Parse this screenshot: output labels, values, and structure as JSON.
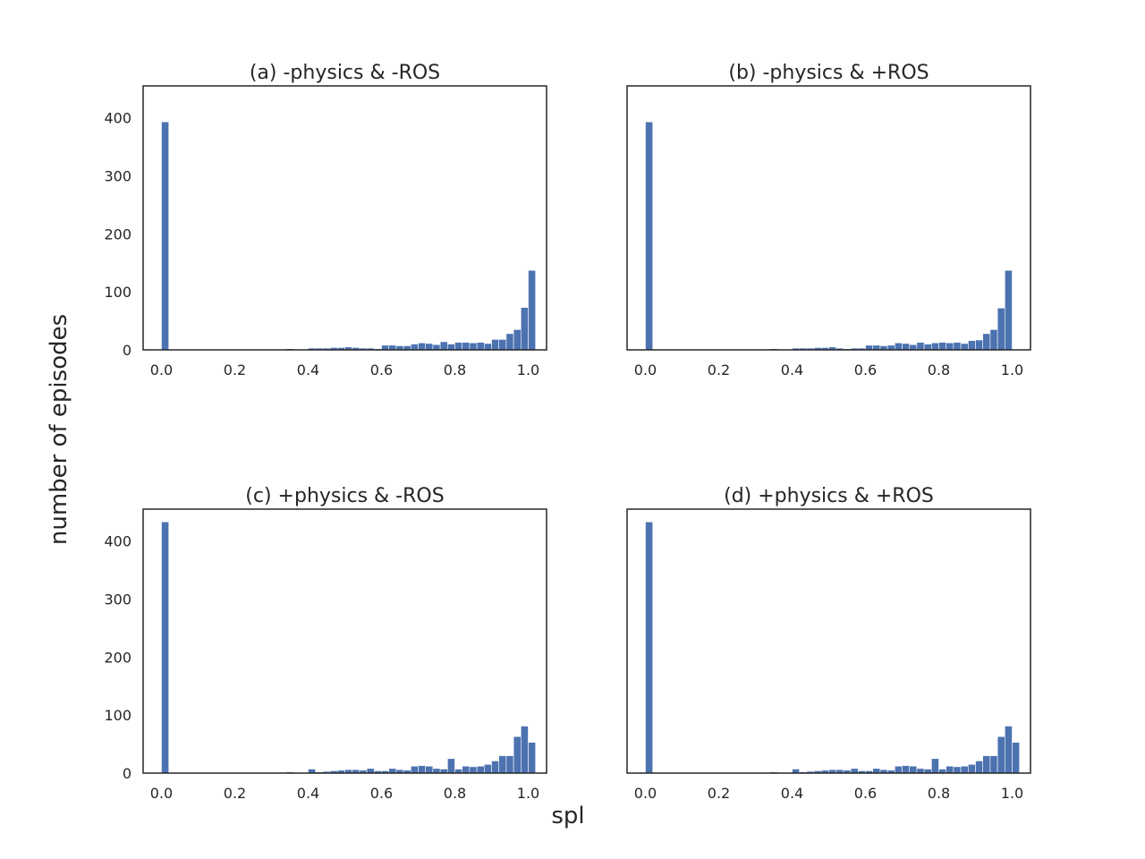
{
  "figure": {
    "ylabel": "number of episodes",
    "xlabel": "spl",
    "bar_color": "#4c72b0",
    "text_color": "#262626",
    "background": "#ffffff"
  },
  "chart_data": [
    {
      "type": "bar",
      "title": "(a) -physics & -ROS",
      "xlim": [
        -0.05,
        1.05
      ],
      "ylim": [
        0,
        455
      ],
      "xticks": [
        "0.0",
        "0.2",
        "0.4",
        "0.6",
        "0.8",
        "1.0"
      ],
      "yticks": [
        "0",
        "100",
        "200",
        "300",
        "400"
      ],
      "grid": false,
      "bin_start": 0.0,
      "bin_width": 0.02,
      "values": [
        393,
        0,
        0,
        0,
        0,
        0,
        0,
        0,
        0,
        0,
        0,
        0,
        0,
        0,
        0,
        0,
        1,
        2,
        0,
        0,
        3,
        3,
        3,
        4,
        4,
        5,
        4,
        3,
        3,
        2,
        8,
        8,
        7,
        7,
        10,
        12,
        11,
        9,
        14,
        10,
        13,
        13,
        12,
        13,
        11,
        18,
        18,
        28,
        35,
        73,
        137
      ]
    },
    {
      "type": "bar",
      "title": "(b) -physics & +ROS",
      "xlim": [
        -0.05,
        1.05
      ],
      "ylim": [
        0,
        455
      ],
      "xticks": [
        "0.0",
        "0.2",
        "0.4",
        "0.6",
        "0.8",
        "1.0"
      ],
      "yticks": [],
      "grid": false,
      "bin_start": 0.0,
      "bin_width": 0.02,
      "values": [
        393,
        0,
        0,
        0,
        0,
        0,
        0,
        0,
        0,
        0,
        0,
        0,
        0,
        0,
        0,
        0,
        1,
        2,
        0,
        0,
        3,
        3,
        3,
        4,
        4,
        5,
        3,
        2,
        3,
        3,
        8,
        8,
        7,
        8,
        12,
        11,
        9,
        13,
        10,
        12,
        13,
        12,
        13,
        11,
        16,
        17,
        28,
        35,
        72,
        137
      ]
    },
    {
      "type": "bar",
      "title": "(c) +physics & -ROS",
      "xlim": [
        -0.05,
        1.05
      ],
      "ylim": [
        0,
        455
      ],
      "xticks": [
        "0.0",
        "0.2",
        "0.4",
        "0.6",
        "0.8",
        "1.0"
      ],
      "yticks": [
        "0",
        "100",
        "200",
        "300",
        "400"
      ],
      "grid": false,
      "bin_start": 0.0,
      "bin_width": 0.02,
      "values": [
        433,
        0,
        0,
        0,
        0,
        0,
        0,
        0,
        0,
        0,
        0,
        0,
        0,
        0,
        0,
        0,
        1,
        2,
        0,
        0,
        7,
        2,
        3,
        4,
        5,
        6,
        6,
        5,
        8,
        4,
        4,
        8,
        6,
        5,
        12,
        13,
        12,
        8,
        7,
        25,
        7,
        12,
        11,
        12,
        15,
        21,
        30,
        30,
        63,
        81,
        53
      ]
    },
    {
      "type": "bar",
      "title": "(d) +physics & +ROS",
      "xlim": [
        -0.05,
        1.05
      ],
      "ylim": [
        0,
        455
      ],
      "xticks": [
        "0.0",
        "0.2",
        "0.4",
        "0.6",
        "0.8",
        "1.0"
      ],
      "yticks": [],
      "grid": false,
      "bin_start": 0.0,
      "bin_width": 0.02,
      "values": [
        433,
        0,
        0,
        0,
        0,
        0,
        0,
        0,
        0,
        0,
        0,
        0,
        0,
        0,
        0,
        0,
        1,
        2,
        0,
        0,
        7,
        2,
        3,
        4,
        5,
        6,
        6,
        5,
        8,
        4,
        4,
        8,
        6,
        5,
        12,
        13,
        12,
        8,
        7,
        25,
        7,
        12,
        11,
        12,
        15,
        21,
        30,
        30,
        63,
        81,
        53
      ]
    }
  ]
}
